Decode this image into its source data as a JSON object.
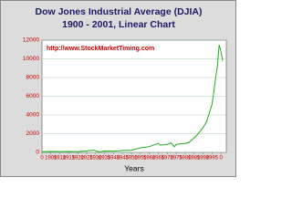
{
  "chart_data": {
    "type": "line",
    "title": "Dow Jones Industrial Average (DJIA)",
    "subtitle": "1900 - 2001, Linear Chart",
    "annotation": "http://www.StockMarketTiming.com",
    "x_label": "Years",
    "x": [
      1900,
      1905,
      1910,
      1915,
      1920,
      1925,
      1929,
      1930,
      1932,
      1935,
      1940,
      1945,
      1950,
      1955,
      1960,
      1965,
      1966,
      1970,
      1972,
      1974,
      1975,
      1980,
      1982,
      1985,
      1987,
      1990,
      1992,
      1995,
      1996,
      1997,
      1998,
      1999,
      2000,
      2001
    ],
    "series": [
      {
        "name": "DJIA",
        "color": "#22aa22",
        "values": [
          70,
          96,
          81,
          99,
          72,
          156,
          248,
          165,
          60,
          144,
          131,
          193,
          235,
          488,
          616,
          969,
          786,
          839,
          1020,
          616,
          852,
          964,
          1047,
          1547,
          1939,
          2634,
          3301,
          5117,
          6448,
          7908,
          9181,
          11497,
          10787,
          9800
        ]
      }
    ],
    "xlim": [
      1900,
      2003
    ],
    "xticks": [
      {
        "value": 1900,
        "label": "0"
      },
      1905,
      1910,
      1915,
      1920,
      1925,
      1930,
      1935,
      1940,
      1945,
      1950,
      1955,
      1960,
      1965,
      1970,
      1975,
      1980,
      1985,
      1990,
      1995,
      {
        "value": 2000,
        "label": "0"
      }
    ],
    "ylim": [
      0,
      12000
    ],
    "yticks": [
      0,
      2000,
      4000,
      6000,
      8000,
      10000,
      12000
    ],
    "grid": true
  }
}
